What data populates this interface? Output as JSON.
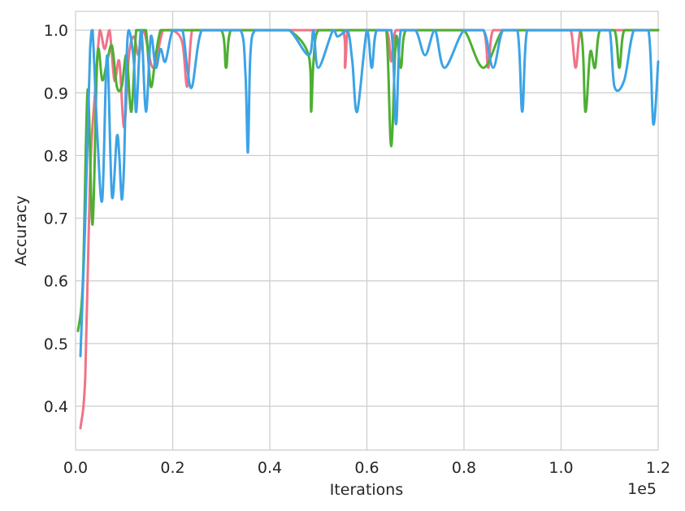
{
  "chart_data": {
    "type": "line",
    "title": "",
    "xlabel": "Iterations",
    "ylabel": "Accuracy",
    "x_offset_label": "1e5",
    "xlim": [
      0,
      120000
    ],
    "ylim": [
      0.33,
      1.03
    ],
    "x_ticks": [
      0,
      20000,
      40000,
      60000,
      80000,
      100000,
      120000
    ],
    "x_tick_labels": [
      "0.0",
      "0.2",
      "0.4",
      "0.6",
      "0.8",
      "1.0",
      "1.2"
    ],
    "y_ticks": [
      0.4,
      0.5,
      0.6,
      0.7,
      0.8,
      0.9,
      1.0
    ],
    "y_tick_labels": [
      "0.4",
      "0.5",
      "0.6",
      "0.7",
      "0.8",
      "0.9",
      "1.0"
    ],
    "grid": true,
    "legend": "none",
    "series": [
      {
        "color": "#f07387",
        "x": [
          1000,
          2000,
          3000,
          4000,
          5000,
          6000,
          7000,
          8000,
          9000,
          10000,
          11000,
          12000,
          13000,
          14000,
          16000,
          18000,
          20000,
          22000,
          23000,
          24000,
          26000,
          30000,
          35000,
          40000,
          45000,
          50000,
          55000,
          55500,
          56000,
          57000,
          60000,
          64000,
          65000,
          66000,
          70000,
          75000,
          80000,
          84000,
          85000,
          86000,
          90000,
          95000,
          100000,
          102000,
          103000,
          104000,
          106000,
          110000,
          115000,
          120000
        ],
        "y": [
          0.365,
          0.45,
          0.77,
          0.9,
          1.0,
          0.97,
          1.0,
          0.92,
          0.95,
          0.845,
          0.96,
          0.99,
          0.96,
          1.0,
          0.94,
          1.0,
          1.0,
          0.98,
          0.91,
          1.0,
          1.0,
          1.0,
          1.0,
          1.0,
          1.0,
          1.0,
          1.0,
          0.94,
          1.0,
          1.0,
          1.0,
          1.0,
          0.95,
          1.0,
          1.0,
          1.0,
          1.0,
          1.0,
          0.94,
          1.0,
          1.0,
          1.0,
          1.0,
          1.0,
          0.94,
          1.0,
          1.0,
          1.0,
          1.0,
          1.0
        ]
      },
      {
        "color": "#4daf32",
        "x": [
          500,
          1500,
          2500,
          3500,
          4500,
          5500,
          6500,
          7500,
          8500,
          9500,
          10500,
          11500,
          12500,
          13500,
          14500,
          15500,
          16500,
          17500,
          18500,
          20000,
          25000,
          30000,
          31000,
          32000,
          36000,
          40000,
          44000,
          48000,
          48500,
          49000,
          50000,
          54000,
          58000,
          62000,
          64000,
          65000,
          66000,
          67000,
          68000,
          72000,
          76000,
          80000,
          84000,
          88000,
          92000,
          96000,
          100000,
          104000,
          105000,
          106000,
          107000,
          108000,
          111000,
          112000,
          113000,
          116000,
          120000
        ],
        "y": [
          0.52,
          0.6,
          0.905,
          0.69,
          0.96,
          0.92,
          0.95,
          0.975,
          0.91,
          0.91,
          0.96,
          0.87,
          1.0,
          1.0,
          1.0,
          0.91,
          0.96,
          1.0,
          1.0,
          1.0,
          1.0,
          1.0,
          0.94,
          1.0,
          1.0,
          1.0,
          1.0,
          0.96,
          0.87,
          0.95,
          1.0,
          1.0,
          1.0,
          1.0,
          1.0,
          0.815,
          0.99,
          0.94,
          1.0,
          1.0,
          1.0,
          1.0,
          0.94,
          1.0,
          1.0,
          1.0,
          1.0,
          1.0,
          0.87,
          0.965,
          0.94,
          1.0,
          1.0,
          0.94,
          1.0,
          1.0,
          1.0
        ]
      },
      {
        "color": "#3ca3e6",
        "x": [
          1000,
          2000,
          3000,
          3500,
          4500,
          5500,
          6500,
          7500,
          8500,
          9000,
          9500,
          10000,
          10500,
          11000,
          12000,
          12500,
          13500,
          14500,
          15500,
          16500,
          17500,
          18500,
          20000,
          22000,
          23000,
          24000,
          26000,
          30000,
          34000,
          35000,
          35500,
          36000,
          37000,
          40000,
          44000,
          48000,
          49000,
          50000,
          53000,
          54000,
          56000,
          57000,
          58000,
          60000,
          61000,
          62000,
          65000,
          66000,
          67000,
          70000,
          72000,
          74000,
          76000,
          80000,
          84000,
          86000,
          88000,
          91000,
          92000,
          93000,
          96000,
          100000,
          104000,
          106000,
          108000,
          110000,
          111000,
          113000,
          115000,
          118000,
          119000,
          120000
        ],
        "y": [
          0.48,
          0.7,
          0.97,
          1.0,
          0.83,
          0.73,
          0.96,
          0.735,
          0.83,
          0.8,
          0.73,
          0.79,
          0.95,
          1.0,
          0.95,
          0.87,
          1.0,
          0.87,
          0.99,
          0.94,
          0.97,
          0.95,
          1.0,
          1.0,
          0.94,
          0.91,
          1.0,
          1.0,
          1.0,
          0.93,
          0.805,
          0.96,
          1.0,
          1.0,
          1.0,
          0.96,
          1.0,
          0.94,
          1.0,
          0.99,
          1.0,
          0.95,
          0.87,
          1.0,
          0.94,
          1.0,
          1.0,
          0.85,
          1.0,
          1.0,
          0.96,
          1.0,
          0.94,
          1.0,
          1.0,
          0.94,
          1.0,
          1.0,
          0.87,
          1.0,
          1.0,
          1.0,
          1.0,
          1.0,
          1.0,
          1.0,
          0.91,
          0.92,
          1.0,
          1.0,
          0.85,
          0.95
        ]
      }
    ]
  }
}
